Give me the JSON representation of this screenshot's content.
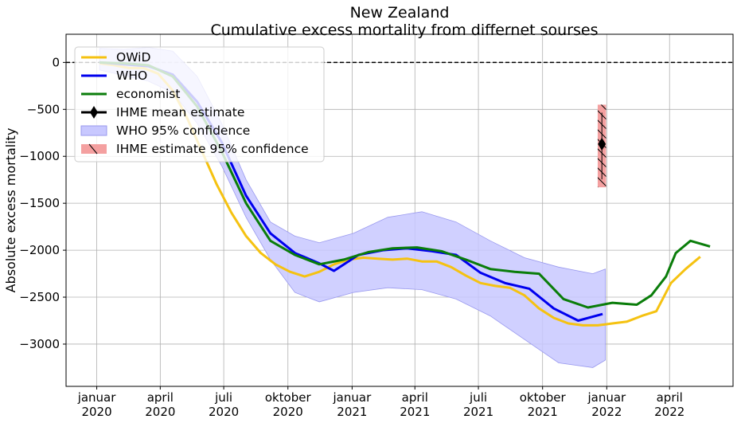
{
  "chart_data": {
    "type": "line",
    "title": "New Zealand",
    "subtitle": "Cumulative excess mortality from differnet sourses",
    "xlabel": "",
    "ylabel": "Absolute excess mortality",
    "ylim": [
      -3450,
      300
    ],
    "xlim": [
      "2019-11-18",
      "2022-07-01"
    ],
    "y_ticks": [
      0,
      -500,
      -1000,
      -1500,
      -2000,
      -2500,
      -3000
    ],
    "x_ticks": [
      {
        "date": "2020-01-01",
        "label1": "januar",
        "label2": "2020"
      },
      {
        "date": "2020-04-01",
        "label1": "april",
        "label2": "2020"
      },
      {
        "date": "2020-07-01",
        "label1": "juli",
        "label2": "2020"
      },
      {
        "date": "2020-10-01",
        "label1": "oktober",
        "label2": "2020"
      },
      {
        "date": "2021-01-01",
        "label1": "januar",
        "label2": "2021"
      },
      {
        "date": "2021-04-01",
        "label1": "april",
        "label2": "2021"
      },
      {
        "date": "2021-07-01",
        "label1": "juli",
        "label2": "2021"
      },
      {
        "date": "2021-10-01",
        "label1": "oktober",
        "label2": "2021"
      },
      {
        "date": "2022-01-01",
        "label1": "januar",
        "label2": "2022"
      },
      {
        "date": "2022-04-01",
        "label1": "april",
        "label2": "2022"
      }
    ],
    "grid": true,
    "legend_position": "top-left",
    "zero_line": {
      "style": "dashed",
      "color": "#000000"
    },
    "legend": [
      {
        "label": "OWiD",
        "type": "line",
        "color": "#f5c211"
      },
      {
        "label": "WHO",
        "type": "line",
        "color": "#0000ee"
      },
      {
        "label": "economist",
        "type": "line",
        "color": "#0a7d0a"
      },
      {
        "label": "IHME mean estimate",
        "type": "marker",
        "color": "#000000"
      },
      {
        "label": "WHO 95% confidence",
        "type": "patch",
        "color": "#c8c8ff"
      },
      {
        "label": " IHME estimate 95% confidence",
        "type": "hatch",
        "color": "#f4a0a0"
      }
    ],
    "series": [
      {
        "name": "OWiD",
        "color": "#f5c211",
        "x": [
          "2020-01-05",
          "2020-01-26",
          "2020-02-16",
          "2020-03-08",
          "2020-03-29",
          "2020-04-19",
          "2020-05-10",
          "2020-05-31",
          "2020-06-21",
          "2020-07-12",
          "2020-08-02",
          "2020-08-23",
          "2020-09-13",
          "2020-10-04",
          "2020-10-25",
          "2020-11-15",
          "2020-12-06",
          "2020-12-27",
          "2021-01-17",
          "2021-02-07",
          "2021-02-28",
          "2021-03-21",
          "2021-04-11",
          "2021-05-02",
          "2021-05-23",
          "2021-06-13",
          "2021-07-04",
          "2021-07-25",
          "2021-08-15",
          "2021-09-05",
          "2021-09-26",
          "2021-10-17",
          "2021-11-07",
          "2021-11-28",
          "2021-12-19",
          "2022-01-09",
          "2022-01-30",
          "2022-02-20",
          "2022-03-13",
          "2022-04-03",
          "2022-04-24",
          "2022-05-15"
        ],
        "values": [
          -10,
          -30,
          -60,
          -60,
          -120,
          -300,
          -600,
          -950,
          -1300,
          -1600,
          -1850,
          -2030,
          -2150,
          -2230,
          -2280,
          -2230,
          -2150,
          -2100,
          -2080,
          -2090,
          -2100,
          -2090,
          -2120,
          -2120,
          -2180,
          -2270,
          -2350,
          -2380,
          -2400,
          -2480,
          -2620,
          -2720,
          -2780,
          -2800,
          -2800,
          -2780,
          -2760,
          -2700,
          -2650,
          -2350,
          -2200,
          -2070
        ]
      },
      {
        "name": "WHO",
        "color": "#0000ee",
        "x": [
          "2020-01-05",
          "2020-02-09",
          "2020-03-15",
          "2020-04-19",
          "2020-05-24",
          "2020-06-28",
          "2020-08-02",
          "2020-09-06",
          "2020-10-11",
          "2020-11-15",
          "2020-12-06",
          "2021-01-10",
          "2021-02-14",
          "2021-03-21",
          "2021-04-25",
          "2021-05-30",
          "2021-07-04",
          "2021-08-08",
          "2021-09-12",
          "2021-10-17",
          "2021-11-21",
          "2021-12-26"
        ],
        "values": [
          0,
          -20,
          -40,
          -130,
          -420,
          -850,
          -1420,
          -1820,
          -2030,
          -2140,
          -2220,
          -2050,
          -2000,
          -1980,
          -2010,
          -2050,
          -2240,
          -2350,
          -2410,
          -2620,
          -2750,
          -2680
        ]
      },
      {
        "name": "economist",
        "color": "#0a7d0a",
        "x": [
          "2020-01-05",
          "2020-02-09",
          "2020-03-15",
          "2020-04-19",
          "2020-05-24",
          "2020-06-28",
          "2020-08-02",
          "2020-09-06",
          "2020-10-11",
          "2020-11-15",
          "2020-12-20",
          "2021-01-24",
          "2021-02-28",
          "2021-04-04",
          "2021-05-09",
          "2021-06-13",
          "2021-07-18",
          "2021-08-22",
          "2021-09-26",
          "2021-10-31",
          "2021-12-05",
          "2022-01-09",
          "2022-02-13",
          "2022-03-06",
          "2022-03-27",
          "2022-04-10",
          "2022-05-01",
          "2022-05-29"
        ],
        "values": [
          0,
          -10,
          -30,
          -150,
          -470,
          -950,
          -1500,
          -1900,
          -2050,
          -2150,
          -2100,
          -2020,
          -1980,
          -1970,
          -2010,
          -2100,
          -2200,
          -2230,
          -2250,
          -2520,
          -2610,
          -2560,
          -2580,
          -2480,
          -2280,
          -2030,
          -1900,
          -1960
        ]
      }
    ],
    "band": {
      "name": "WHO 95% confidence",
      "color": "#c8c8ff",
      "x": [
        "2020-01-05",
        "2020-02-09",
        "2020-03-15",
        "2020-04-19",
        "2020-05-24",
        "2020-06-28",
        "2020-08-02",
        "2020-09-06",
        "2020-10-11",
        "2020-11-15",
        "2021-01-03",
        "2021-02-21",
        "2021-04-11",
        "2021-05-30",
        "2021-07-18",
        "2021-09-05",
        "2021-10-24",
        "2021-12-12",
        "2021-12-30"
      ],
      "upper": [
        150,
        140,
        160,
        120,
        -150,
        -650,
        -1250,
        -1700,
        -1850,
        -1920,
        -1820,
        -1650,
        -1590,
        -1700,
        -1900,
        -2080,
        -2180,
        -2250,
        -2200
      ],
      "lower": [
        -80,
        -140,
        -200,
        -320,
        -650,
        -1100,
        -1650,
        -2100,
        -2450,
        -2550,
        -2450,
        -2400,
        -2420,
        -2520,
        -2700,
        -2950,
        -3200,
        -3250,
        -3170
      ]
    },
    "ihme": {
      "date": "2021-12-25",
      "mean": -870,
      "lower": -1330,
      "upper": -450,
      "box_width_days": 12,
      "mean_color": "#000000",
      "band_color": "#f4a0a0"
    }
  }
}
